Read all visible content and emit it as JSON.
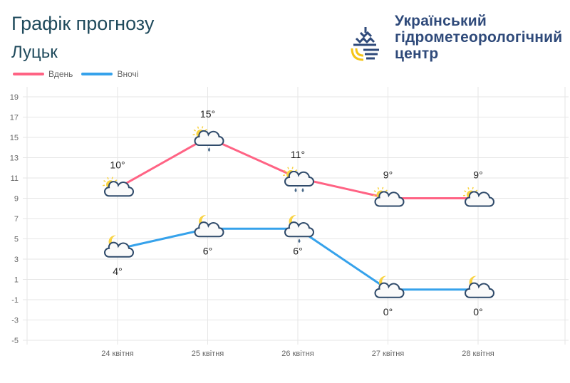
{
  "header": {
    "title": "Графік прогнозу",
    "city": "Луцьк"
  },
  "logo": {
    "org_lines": [
      "Український",
      "гідрометеорологічний",
      "центр"
    ],
    "colors": {
      "navy": "#2f4a7a",
      "yellow": "#f5c518"
    }
  },
  "chart_data": {
    "type": "line",
    "categories": [
      "24 квітня",
      "25 квітня",
      "26 квітня",
      "27 квітня",
      "28 квітня"
    ],
    "series": [
      {
        "name": "Вдень",
        "color": "#ff6384",
        "values": [
          10,
          15,
          11,
          9,
          9
        ],
        "labels": [
          "10°",
          "15°",
          "11°",
          "9°",
          "9°"
        ],
        "icons": [
          "sun-cloud",
          "sun-cloud-light-rain",
          "sun-cloud-rain",
          "sun-cloud",
          "sun-cloud"
        ]
      },
      {
        "name": "Вночі",
        "color": "#36a2eb",
        "values": [
          4,
          6,
          6,
          0,
          0
        ],
        "labels": [
          "4°",
          "6°",
          "6°",
          "0°",
          "0°"
        ],
        "icons": [
          "moon-cloud",
          "moon-cloud",
          "moon-cloud-light-rain",
          "moon-cloud",
          "moon-cloud"
        ]
      }
    ],
    "ylim": [
      -5,
      19
    ],
    "yticks": [
      "19",
      "17",
      "15",
      "13",
      "11",
      "9",
      "7",
      "5",
      "3",
      "1",
      "-1",
      "-3",
      "-5"
    ],
    "grid": true,
    "legend": "top-left"
  }
}
